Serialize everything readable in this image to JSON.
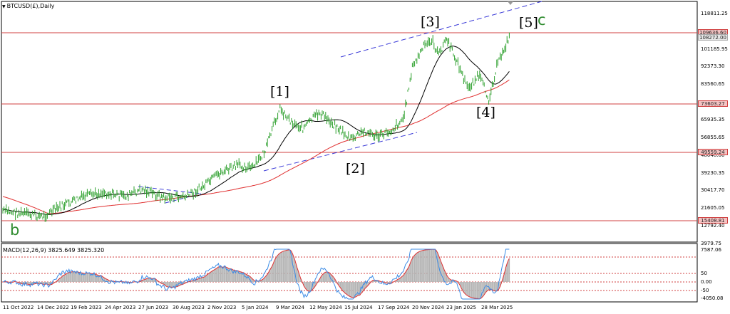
{
  "chart": {
    "symbol": "BTCUSD(£),Daily",
    "macd_label": "MACD(12,26,9) 3825.649 3825.320",
    "colors": {
      "price_bars": "#2ea02e",
      "ma_fast": "#000000",
      "ma_slow": "#e03030",
      "hlines": "#d04040",
      "channel": "#3a3ad8",
      "macd_line": "#3c8ce6",
      "macd_signal": "#e03030",
      "macd_hist": "#b4b4b4"
    },
    "wave_labels": [
      {
        "id": "b",
        "text": "b",
        "color": "#2e8b2e"
      },
      {
        "id": "w1",
        "text": "[1]",
        "color": "#000000"
      },
      {
        "id": "w2",
        "text": "[2]",
        "color": "#000000"
      },
      {
        "id": "w3",
        "text": "[3]",
        "color": "#000000"
      },
      {
        "id": "w4",
        "text": "[4]",
        "color": "#000000"
      },
      {
        "id": "w5",
        "text": "[5]",
        "color": "#000000"
      },
      {
        "id": "c",
        "text": "c",
        "color": "#2e8b2e"
      }
    ],
    "y_axis_ticks": [
      "118811.25",
      "101185.95",
      "92373.30",
      "83560.65",
      "65935.35",
      "56855.65",
      "48048.60",
      "39230.35",
      "30417.70",
      "21605.05",
      "12792.40",
      "3979.75"
    ],
    "price_levels": [
      "109636.60",
      "108272.00",
      "73603.27",
      "49559.24",
      "15408.81"
    ],
    "macd_ticks": [
      "7587.06",
      "50",
      "0.00",
      "-50",
      "-4050.08"
    ],
    "x_axis_ticks": [
      "11 Oct 2022",
      "14 Dec 2022",
      "19 Feb 2023",
      "24 Apr 2023",
      "27 Jun 2023",
      "30 Aug 2023",
      "2 Nov 2023",
      "5 Jan 2024",
      "9 Mar 2024",
      "12 May 2024",
      "15 Jul 2024",
      "17 Sep 2024",
      "20 Nov 2024",
      "23 Jan 2025",
      "28 Mar 2025"
    ]
  }
}
